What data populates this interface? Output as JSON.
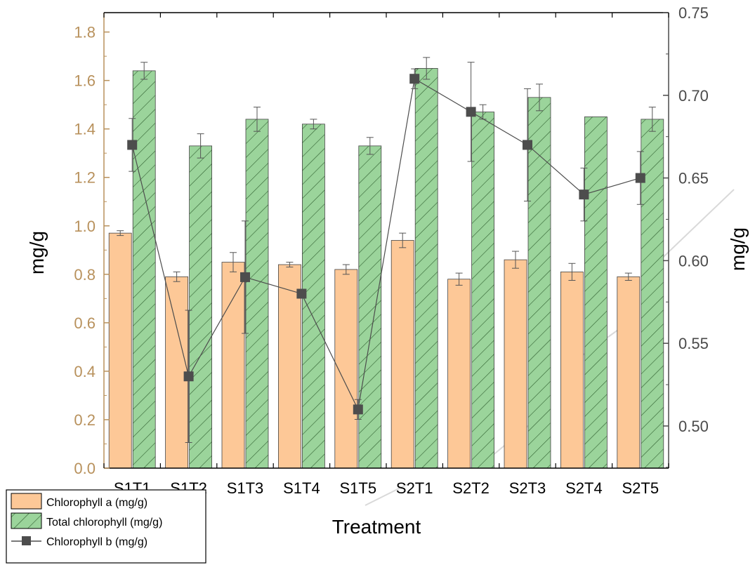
{
  "chart_data": {
    "type": "bar",
    "categories": [
      "S1T1",
      "S1T2",
      "S1T3",
      "S1T4",
      "S1T5",
      "S2T1",
      "S2T2",
      "S2T3",
      "S2T4",
      "S2T5"
    ],
    "xlabel": "Treatment",
    "ylabel_left": "mg/g",
    "ylabel_right": "mg/g",
    "ylim_left": [
      0,
      1.88
    ],
    "yticks_left": [
      "0.0",
      "0.2",
      "0.4",
      "0.6",
      "0.8",
      "1.0",
      "1.2",
      "1.4",
      "1.6",
      "1.8"
    ],
    "ylim_right": [
      0.4745,
      0.75
    ],
    "yticks_right": [
      "0.50",
      "0.55",
      "0.60",
      "0.65",
      "0.70",
      "0.75"
    ],
    "series": [
      {
        "name": "Chlorophyll a (mg/g)",
        "type": "bar",
        "axis": "left",
        "color": "#fdc897",
        "values": [
          0.97,
          0.79,
          0.85,
          0.84,
          0.82,
          0.94,
          0.78,
          0.86,
          0.81,
          0.79
        ],
        "errors": [
          0.01,
          0.02,
          0.04,
          0.01,
          0.02,
          0.03,
          0.025,
          0.035,
          0.035,
          0.015
        ]
      },
      {
        "name": "Total chlorophyll (mg/g)",
        "type": "bar",
        "axis": "left",
        "color": "#9bd49b",
        "hatch": "diagonal",
        "values": [
          1.64,
          1.33,
          1.44,
          1.42,
          1.33,
          1.65,
          1.47,
          1.53,
          1.45,
          1.44
        ],
        "errors": [
          0.035,
          0.05,
          0.05,
          0.02,
          0.035,
          0.045,
          0.03,
          0.055,
          0.0,
          0.05
        ]
      },
      {
        "name": "Chlorophyll b (mg/g)",
        "type": "line",
        "axis": "right",
        "color": "#4d4d4d",
        "marker": "square",
        "values": [
          0.67,
          0.53,
          0.59,
          0.58,
          0.51,
          0.71,
          0.69,
          0.67,
          0.64,
          0.65
        ],
        "errors": [
          0.016,
          0.04,
          0.034,
          0.0,
          0.006,
          0.006,
          0.03,
          0.034,
          0.016,
          0.016
        ]
      }
    ],
    "legend_position": "bottom-left"
  }
}
